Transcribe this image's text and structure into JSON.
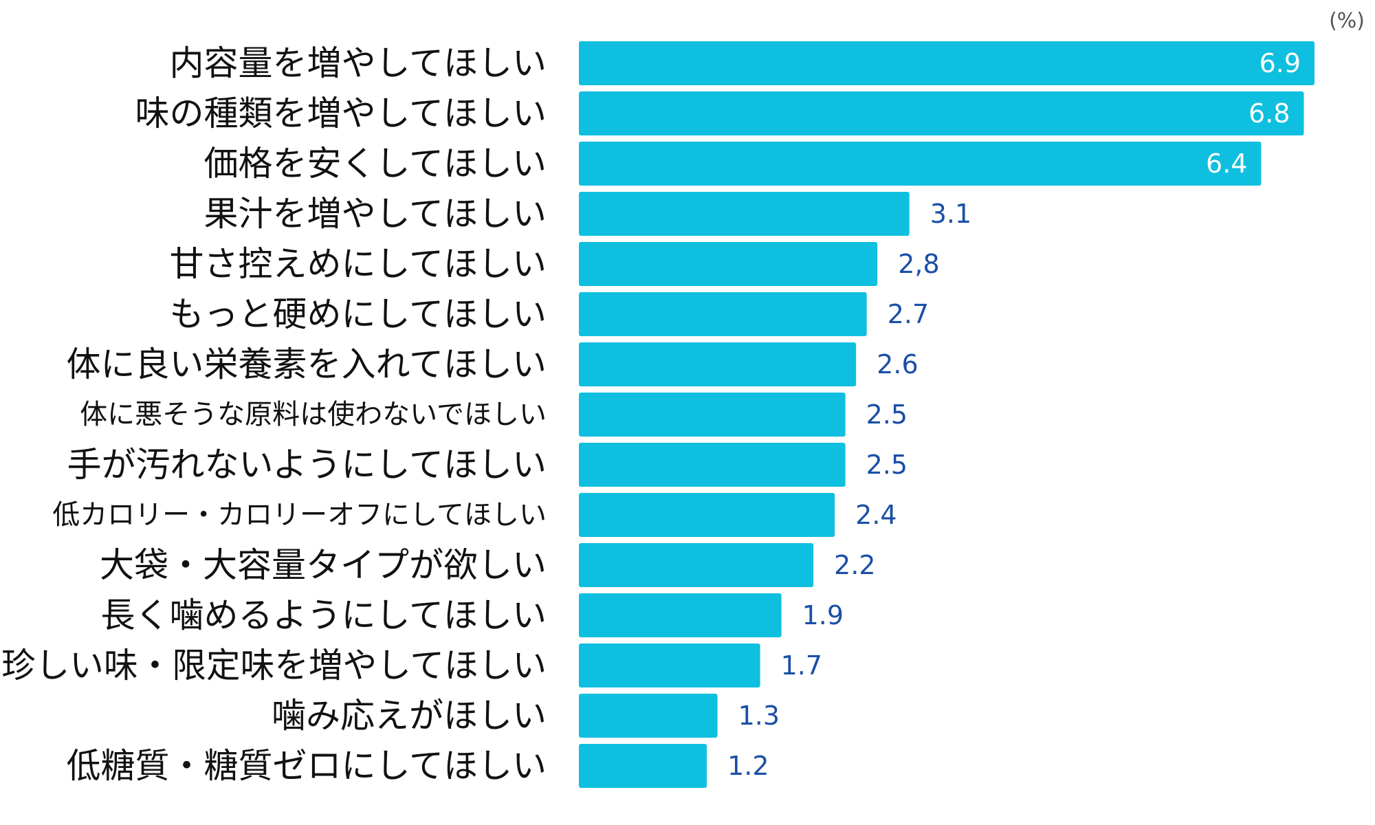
{
  "colors": {
    "bar": "#0fbfdf",
    "value_inside": "#ffffff",
    "value_outside": "#1a4fa6",
    "label": "#111111",
    "unit": "#555555"
  },
  "chart_data": {
    "type": "bar",
    "orientation": "horizontal",
    "unit_label": "(%)",
    "xlim": [
      0,
      7.2
    ],
    "grid": false,
    "categories": [
      "内容量を増やしてほしい",
      "味の種類を増やしてほしい",
      "価格を安くしてほしい",
      "果汁を増やしてほしい",
      "甘さ控えめにしてほしい",
      "もっと硬めにしてほしい",
      "体に良い栄養素を入れてほしい",
      "体に悪そうな原料は使わないでほしい",
      "手が汚れないようにしてほしい",
      "低カロリー・カロリーオフにしてほしい",
      "大袋・大容量タイプが欲しい",
      "長く噛めるようにしてほしい",
      "珍しい味・限定味を増やしてほしい",
      "噛み応えがほしい",
      "低糖質・糖質ゼロにしてほしい"
    ],
    "values": [
      6.9,
      6.8,
      6.4,
      3.1,
      2.8,
      2.7,
      2.6,
      2.5,
      2.5,
      2.4,
      2.2,
      1.9,
      1.7,
      1.3,
      1.2
    ],
    "value_labels": [
      "6.9",
      "6.8",
      "6.4",
      "3.1",
      "2,8",
      "2.7",
      "2.6",
      "2.5",
      "2.5",
      "2.4",
      "2.2",
      "1.9",
      "1.7",
      "1.3",
      "1.2"
    ]
  }
}
